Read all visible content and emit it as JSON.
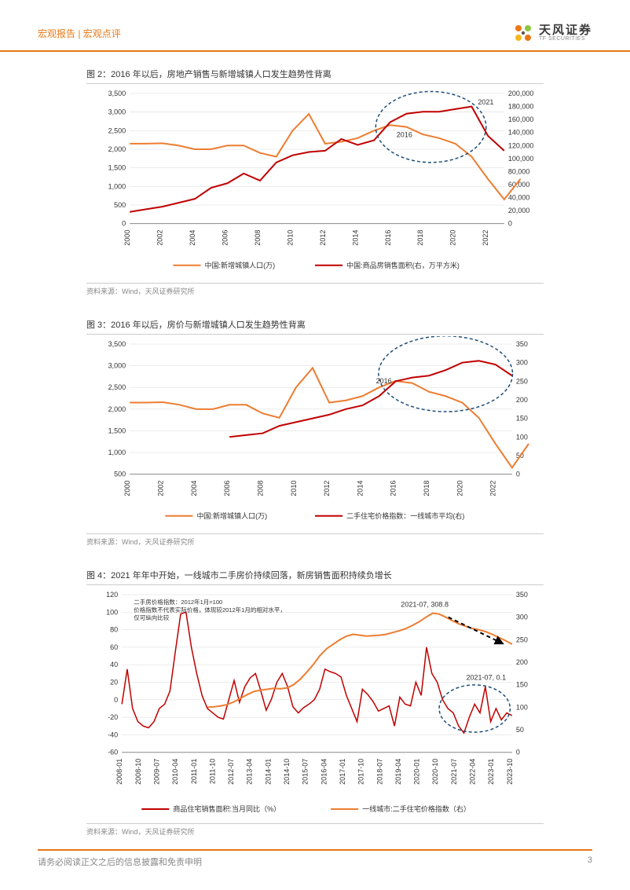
{
  "header": {
    "left": "宏观报告 | 宏观点评",
    "logo_cn": "天风证券",
    "logo_en": "TF SECURITIES"
  },
  "footer": {
    "disclaimer": "请务必阅读正文之后的信息披露和免责申明",
    "page": "3"
  },
  "colors": {
    "accent": "#e97817",
    "line_orange": "#ed7d31",
    "line_red": "#c00000",
    "grid": "#d9d9d9",
    "axis": "#888888",
    "ellipse": "#1f4e79",
    "arrow": "#000000",
    "bg": "#ffffff"
  },
  "chart2": {
    "title": "图 2：2016 年以后，房地产销售与新增城镇人口发生趋势性背离",
    "type": "line-dual-axis",
    "x_labels": [
      "2000",
      "2002",
      "2004",
      "2006",
      "2008",
      "2010",
      "2012",
      "2014",
      "2016",
      "2018",
      "2020",
      "2022"
    ],
    "y_left": {
      "min": 0,
      "max": 3500,
      "step": 500,
      "labels": [
        "0",
        "500",
        "1,000",
        "1,500",
        "2,000",
        "2,500",
        "3,000",
        "3,500"
      ]
    },
    "y_right": {
      "min": 0,
      "max": 200000,
      "step": 20000,
      "labels": [
        "0",
        "20,000",
        "40,000",
        "60,000",
        "80,000",
        "100,000",
        "120,000",
        "140,000",
        "160,000",
        "180,000",
        "200,000"
      ]
    },
    "series_orange": {
      "name": "中国:新增城镇人口(万)",
      "color": "#ed7d31",
      "points": [
        2150,
        2150,
        2160,
        2100,
        2000,
        2000,
        2100,
        2100,
        1900,
        1800,
        2500,
        2950,
        2150,
        2200,
        2300,
        2500,
        2650,
        2600,
        2400,
        2300,
        2150,
        1800,
        1200,
        650,
        1200
      ]
    },
    "series_red": {
      "name": "中国:商品房销售面积(右，万平方米)",
      "color": "#c00000",
      "points": [
        18000,
        22000,
        26000,
        32000,
        38000,
        55000,
        62000,
        77000,
        66000,
        94000,
        105000,
        110000,
        112000,
        130000,
        121000,
        128000,
        156000,
        169000,
        172000,
        172000,
        176000,
        180000,
        135000,
        112000
      ]
    },
    "annotations": {
      "a2016": "2016",
      "a2021": "2021"
    },
    "source": "资料来源：Wind，天风证券研究所"
  },
  "chart3": {
    "title": "图 3：2016 年以后，房价与新增城镇人口发生趋势性背离",
    "type": "line-dual-axis",
    "x_labels": [
      "2000",
      "2002",
      "2004",
      "2006",
      "2008",
      "2010",
      "2012",
      "2014",
      "2016",
      "2018",
      "2020",
      "2022"
    ],
    "y_left": {
      "min": 500,
      "max": 3500,
      "step": 500,
      "labels": [
        "500",
        "1,000",
        "1,500",
        "2,000",
        "2,500",
        "3,000",
        "3,500"
      ]
    },
    "y_right": {
      "min": 0,
      "max": 350,
      "step": 50,
      "labels": [
        "0",
        "50",
        "100",
        "150",
        "200",
        "250",
        "300",
        "350"
      ]
    },
    "series_orange": {
      "name": "中国:新增城镇人口(万)",
      "color": "#ed7d31",
      "points": [
        2150,
        2150,
        2160,
        2100,
        2000,
        2000,
        2100,
        2100,
        1900,
        1800,
        2500,
        2950,
        2150,
        2200,
        2300,
        2500,
        2650,
        2600,
        2400,
        2300,
        2150,
        1800,
        1200,
        650,
        1200
      ]
    },
    "series_red": {
      "name": "二手住宅价格指数：一线城市平均(右)",
      "color": "#c00000",
      "points": [
        null,
        null,
        null,
        null,
        null,
        null,
        100,
        105,
        110,
        130,
        140,
        150,
        160,
        175,
        185,
        210,
        250,
        260,
        265,
        280,
        300,
        305,
        295,
        265
      ]
    },
    "annotations": {
      "a2016": "2016"
    },
    "source": "资料来源：Wind，天风证券研究所"
  },
  "chart4": {
    "title": "图 4：2021 年年中开始，一线城市二手房价持续回落，新房销售面积持续负增长",
    "type": "line-dual-axis",
    "note1": "二手房价格指数：2012年1月=100",
    "note2": "价格指数不代表实际价格，体现较2012年1月的相对水平，",
    "note3": "仅可纵向比较",
    "x_labels": [
      "2008-01",
      "2008-10",
      "2009-07",
      "2010-04",
      "2011-01",
      "2011-10",
      "2012-07",
      "2013-04",
      "2014-01",
      "2014-10",
      "2015-07",
      "2016-04",
      "2017-01",
      "2017-10",
      "2018-07",
      "2019-04",
      "2020-01",
      "2020-10",
      "2021-07",
      "2022-04",
      "2023-01",
      "2023-10"
    ],
    "y_left": {
      "min": -60,
      "max": 120,
      "step": 20,
      "labels": [
        "-60",
        "-40",
        "-20",
        "0",
        "20",
        "40",
        "60",
        "80",
        "100",
        "120"
      ]
    },
    "y_right": {
      "min": 0,
      "max": 350,
      "step": 50,
      "labels": [
        "0",
        "50",
        "100",
        "150",
        "200",
        "250",
        "300",
        "350"
      ]
    },
    "series_red": {
      "name": "商品住宅销售面积:当月同比（%）",
      "color": "#c00000",
      "points": [
        -5,
        35,
        -10,
        -25,
        -30,
        -32,
        -25,
        -10,
        -5,
        10,
        55,
        98,
        100,
        60,
        30,
        5,
        -10,
        -15,
        -20,
        -22,
        0,
        22,
        -3,
        15,
        25,
        30,
        10,
        -12,
        1,
        20,
        30,
        15,
        -8,
        -15,
        -9,
        -5,
        0,
        12,
        35,
        32,
        30,
        26,
        5,
        -10,
        -25,
        12,
        6,
        -2,
        -13,
        -10,
        -7,
        -30,
        3,
        -5,
        -7,
        20,
        5,
        60,
        30,
        20,
        0.1,
        -10,
        -15,
        -30,
        -38,
        -20,
        -5,
        -15,
        15,
        -25,
        -10,
        -23,
        -15,
        -18
      ]
    },
    "series_orange": {
      "name": "一线城市:二手住宅价格指数（右）",
      "color": "#ed7d31",
      "points": [
        null,
        null,
        null,
        null,
        null,
        null,
        null,
        null,
        null,
        null,
        null,
        null,
        null,
        null,
        null,
        null,
        100,
        101,
        103,
        106,
        112,
        120,
        128,
        135,
        138,
        140,
        142,
        141,
        143,
        150,
        162,
        178,
        195,
        215,
        230,
        240,
        250,
        258,
        262,
        260,
        258,
        259,
        260,
        262,
        266,
        270,
        275,
        282,
        290,
        300,
        308.8,
        307,
        300,
        292,
        285,
        280,
        275,
        272,
        268,
        262,
        255,
        248,
        240
      ]
    },
    "annotations": {
      "peak": "2021-07, 308.8",
      "trough": "2021-07, 0.1"
    },
    "source": "资料来源：Wind，天风证券研究所"
  }
}
